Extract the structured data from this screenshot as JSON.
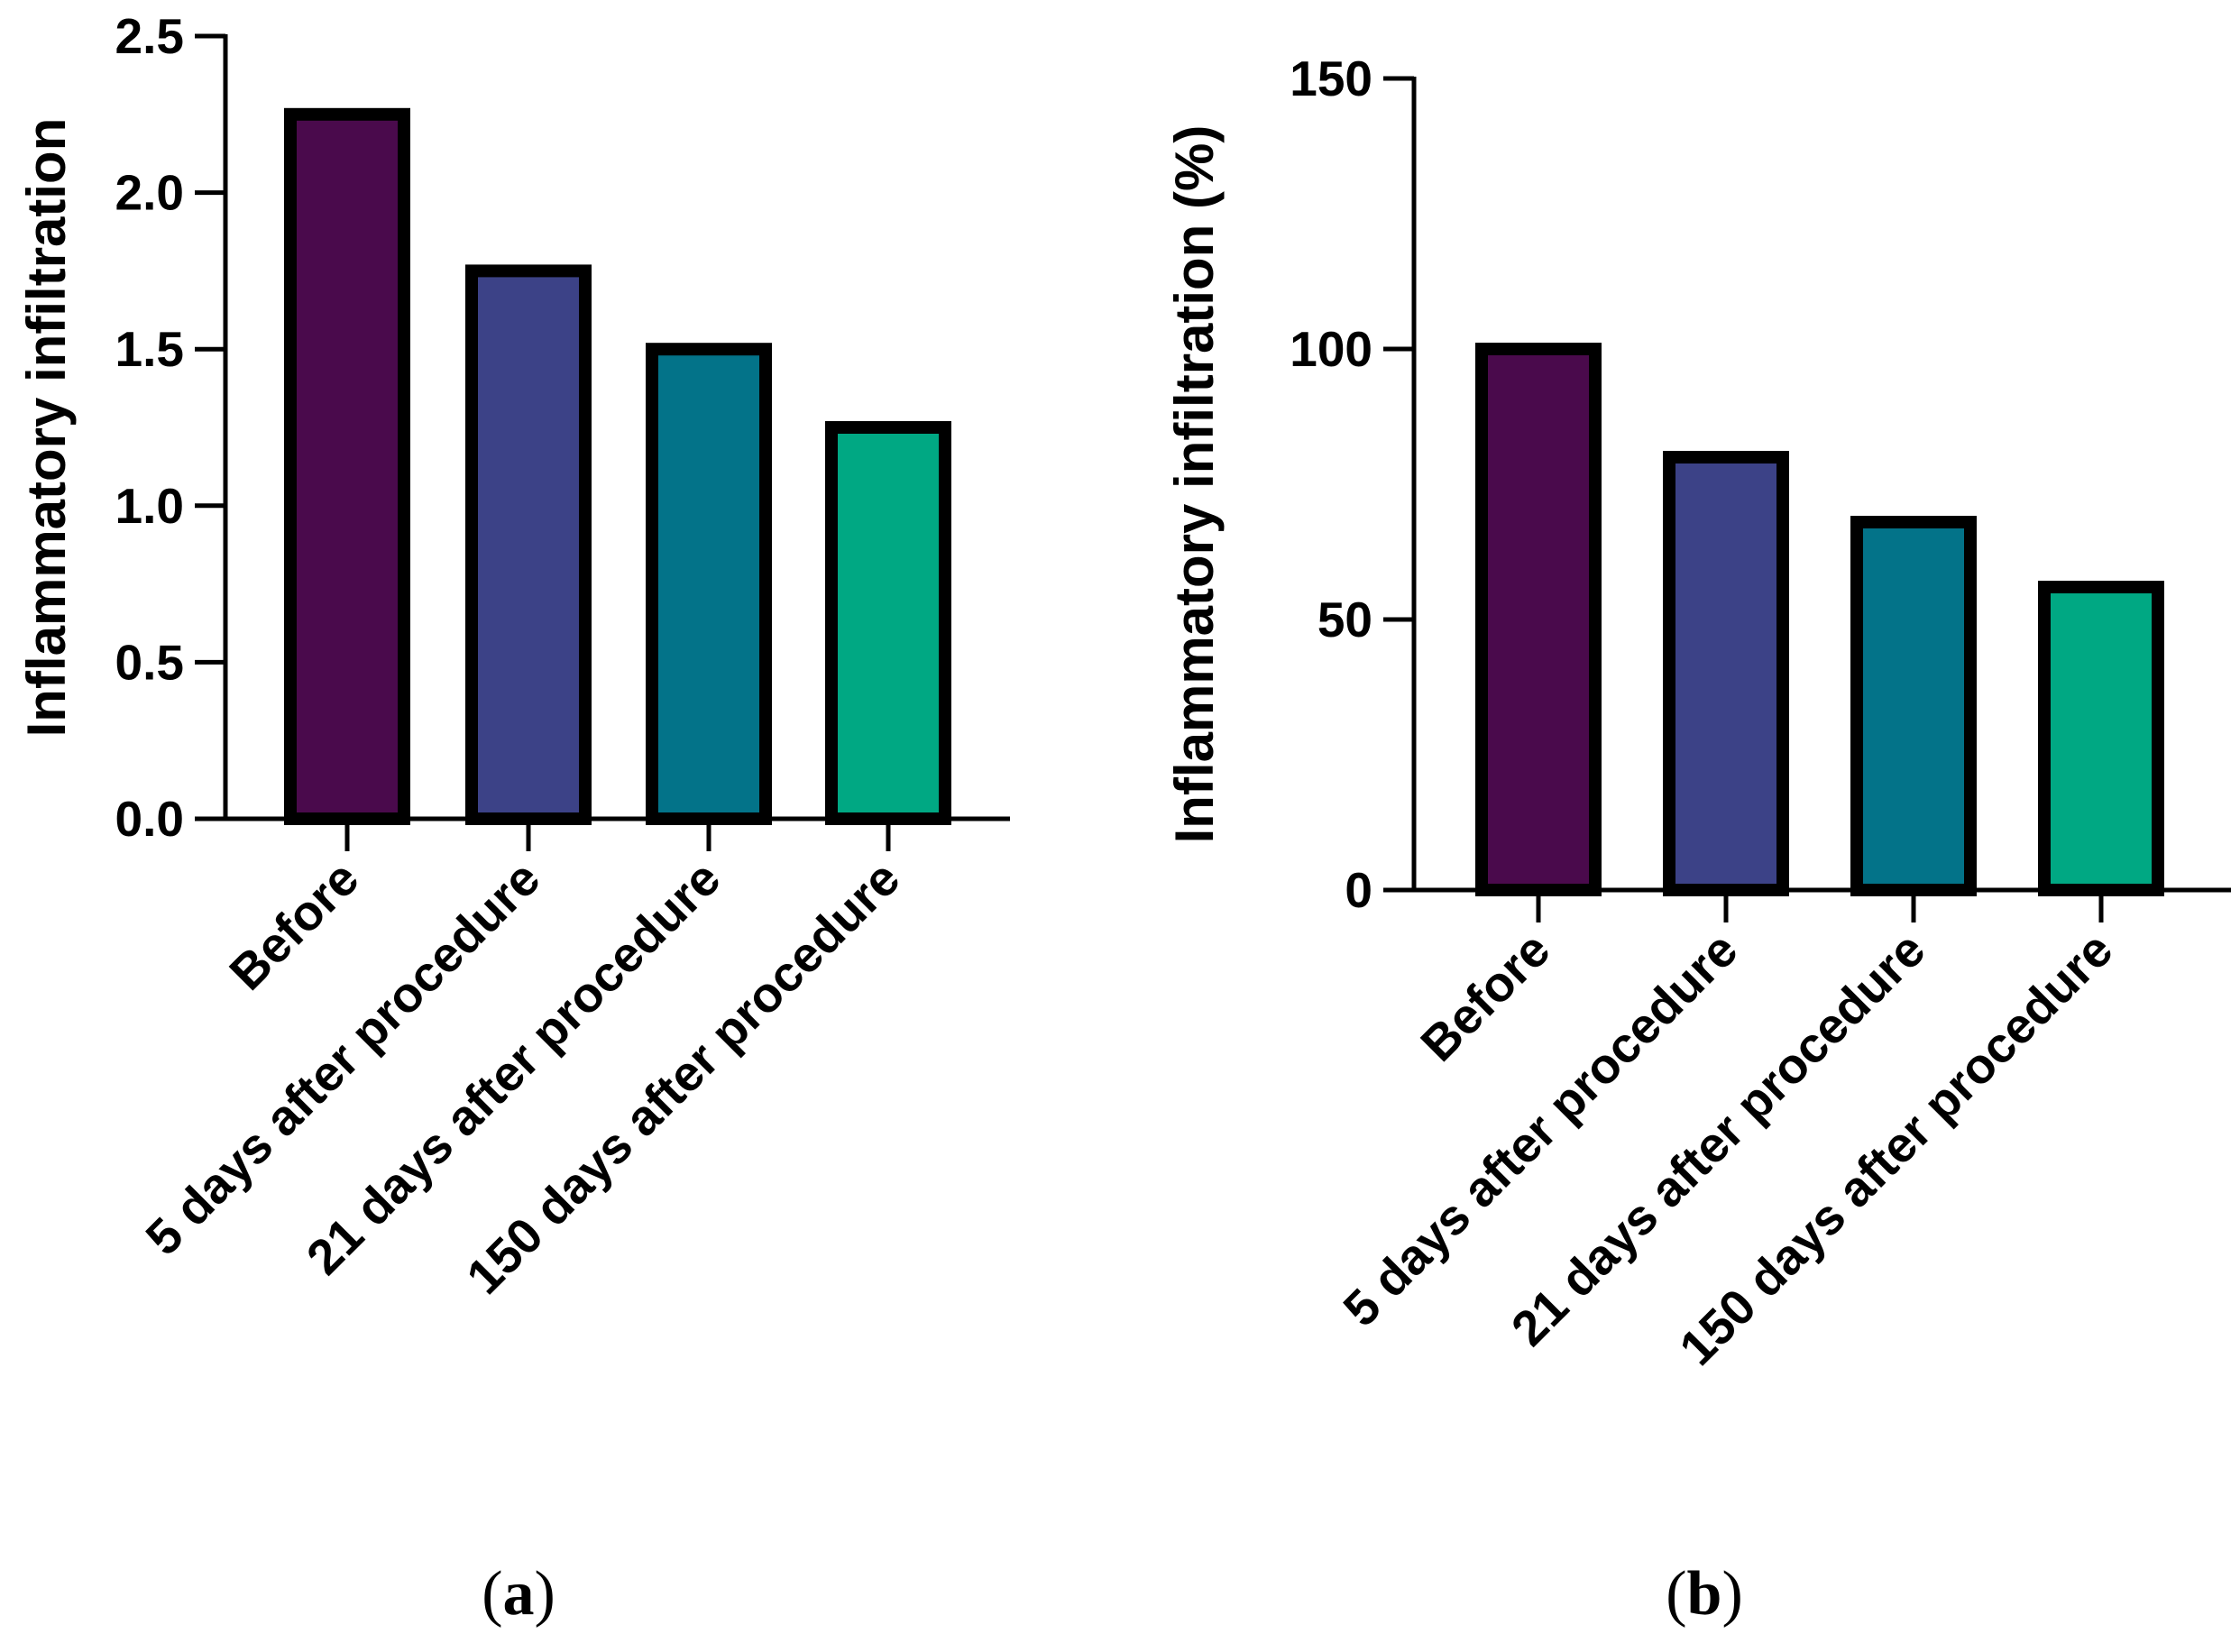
{
  "chart_data": [
    {
      "type": "bar",
      "panel": "a",
      "caption": {
        "open": "(",
        "letter": "a",
        "close": ")"
      },
      "title": "",
      "xlabel": "",
      "ylabel": "Inflammatory infiltration",
      "categories": [
        "Before",
        "5 days after procedure",
        "21 days after procedure",
        "150 days after procedure"
      ],
      "values": [
        2.25,
        1.75,
        1.5,
        1.25
      ],
      "colors": [
        "#4a0a4c",
        "#3c4287",
        "#037389",
        "#00a883"
      ],
      "ylim": [
        0,
        2.5
      ],
      "yticks": [
        0.0,
        0.5,
        1.0,
        1.5,
        2.0,
        2.5
      ],
      "ytick_labels": [
        "0.0",
        "0.5",
        "1.0",
        "1.5",
        "2.0",
        "2.5"
      ],
      "grid": false
    },
    {
      "type": "bar",
      "panel": "b",
      "caption": {
        "open": "(",
        "letter": "b",
        "close": ")"
      },
      "title": "",
      "xlabel": "",
      "ylabel": "Inflammatory infiltration (%)",
      "categories": [
        "Before",
        "5 days after procedure",
        "21 days after procedure",
        "150 days after procedure"
      ],
      "values": [
        100,
        80,
        68,
        56
      ],
      "colors": [
        "#4a0a4c",
        "#3c4287",
        "#037389",
        "#00a883"
      ],
      "ylim": [
        0,
        150
      ],
      "yticks": [
        0,
        50,
        100,
        150
      ],
      "ytick_labels": [
        "0",
        "50",
        "100",
        "150"
      ],
      "grid": false
    }
  ]
}
